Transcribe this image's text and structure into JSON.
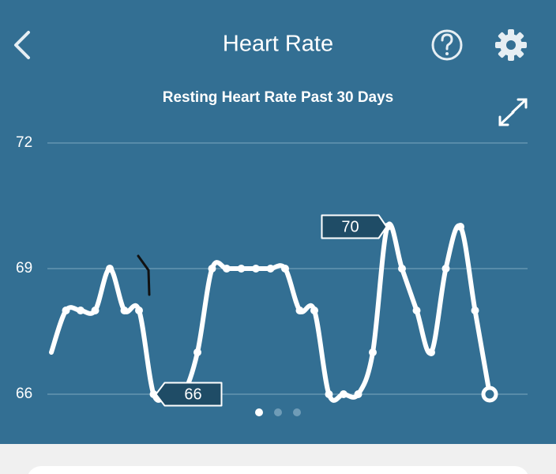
{
  "header": {
    "title": "Heart Rate"
  },
  "chart_data": {
    "type": "line",
    "title": "Resting Heart Rate Past 30 Days",
    "values": [
      67,
      68,
      68,
      68,
      69,
      68,
      68,
      66,
      66,
      66,
      67,
      69,
      69,
      69,
      69,
      69,
      69,
      68,
      68,
      66,
      66,
      66,
      67,
      70,
      69,
      68,
      67,
      69,
      70,
      68,
      66
    ],
    "color": "#ffffff",
    "ylim": [
      66,
      72
    ],
    "yticks": [
      66,
      69,
      72
    ],
    "grid": true
  }
}
